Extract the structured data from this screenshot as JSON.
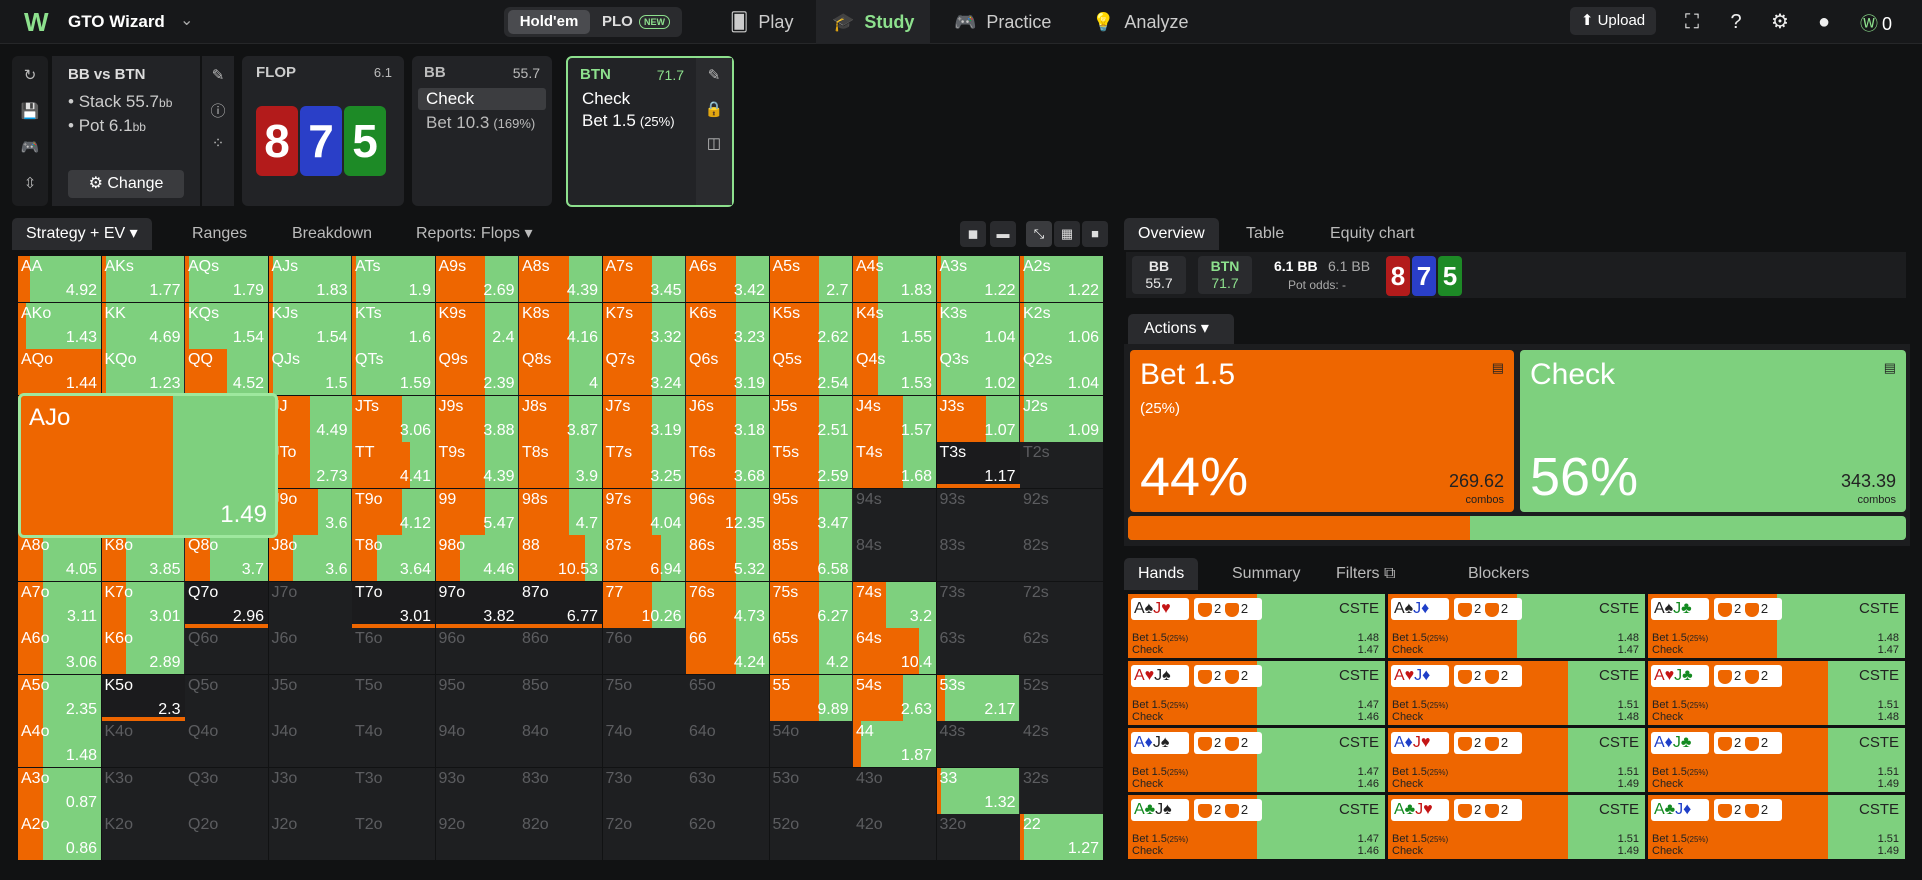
{
  "topbar": {
    "app_name": "GTO Wizard",
    "game_holdem": "Hold'em",
    "game_plo": "PLO",
    "new_badge": "NEW",
    "nav": [
      "Play",
      "Study",
      "Practice",
      "Analyze"
    ],
    "upload": "Upload",
    "coins": "0"
  },
  "spot": {
    "title": "BB vs BTN",
    "stack_label": "Stack 55.7",
    "pot_label": "Pot 6.1",
    "unit": "bb",
    "change": "Change"
  },
  "flop": {
    "label": "FLOP",
    "pot": "6.1",
    "cards": [
      "8",
      "7",
      "5"
    ],
    "card_colors": [
      "#b31b1b",
      "#2a3fc8",
      "#1d8a26"
    ]
  },
  "bb_node": {
    "name": "BB",
    "stack": "55.7",
    "opt1": "Check",
    "opt2": "Bet 10.3",
    "opt2_pct": "(169%)"
  },
  "btn_node": {
    "name": "BTN",
    "stack": "71.7",
    "opt1": "Check",
    "opt2": "Bet 1.5",
    "opt2_pct": "(25%)"
  },
  "left_tabs": [
    "Strategy + EV",
    "Ranges",
    "Breakdown",
    "Reports: Flops"
  ],
  "grid": {
    "ranks": [
      "A",
      "K",
      "Q",
      "J",
      "T",
      "9",
      "8",
      "7",
      "6",
      "5",
      "4",
      "3",
      "2"
    ],
    "big_cell": {
      "name": "AJo",
      "ev": "1.49",
      "bet_frac": 0.6
    },
    "ev": [
      [
        "4.92",
        "1.77",
        "1.79",
        "1.83",
        "1.9",
        "2.69",
        "4.39",
        "3.45",
        "3.42",
        "2.7",
        "1.83",
        "1.22",
        "1.22"
      ],
      [
        "1.43",
        "4.69",
        "1.54",
        "1.54",
        "1.6",
        "2.4",
        "4.16",
        "3.32",
        "3.23",
        "2.62",
        "1.55",
        "1.04",
        "1.06"
      ],
      [
        "1.44",
        "1.23",
        "4.52",
        "1.5",
        "1.59",
        "2.39",
        "4",
        "3.24",
        "3.19",
        "2.54",
        "1.53",
        "1.02",
        "1.04"
      ],
      [
        "1.49",
        "",
        "",
        "4.49",
        "3.06",
        "3.88",
        "3.87",
        "3.19",
        "3.18",
        "2.51",
        "1.57",
        "1.07",
        "1.09"
      ],
      [
        "",
        "",
        "",
        "2.73",
        "4.41",
        "4.39",
        "3.9",
        "3.25",
        "3.68",
        "2.59",
        "1.68",
        "1.17",
        ""
      ],
      [
        "",
        "",
        "",
        "3.6",
        "4.12",
        "5.47",
        "4.7",
        "4.04",
        "12.35",
        "3.47",
        "",
        "",
        ""
      ],
      [
        "4.05",
        "3.85",
        "3.7",
        "3.6",
        "3.64",
        "4.46",
        "10.53",
        "6.94",
        "5.32",
        "6.58",
        "",
        "",
        ""
      ],
      [
        "3.11",
        "3.01",
        "2.96",
        "",
        "3.01",
        "3.82",
        "6.77",
        "10.26",
        "4.73",
        "6.27",
        "3.2",
        "",
        ""
      ],
      [
        "3.06",
        "2.89",
        "",
        "",
        "",
        "",
        "",
        "",
        "4.24",
        "4.2",
        "10.4",
        "",
        ""
      ],
      [
        "2.35",
        "2.3",
        "",
        "",
        "",
        "",
        "",
        "",
        "",
        "9.89",
        "2.63",
        "2.17",
        ""
      ],
      [
        "1.48",
        "",
        "",
        "",
        "",
        "",
        "",
        "",
        "",
        "",
        "1.87",
        "",
        ""
      ],
      [
        "0.87",
        "",
        "",
        "",
        "",
        "",
        "",
        "",
        "",
        "",
        "",
        "1.32",
        ""
      ],
      [
        "0.86",
        "",
        "",
        "",
        "",
        "",
        "",
        "",
        "",
        "",
        "",
        "",
        "1.27"
      ]
    ],
    "bet": [
      [
        0.15,
        0.05,
        0.05,
        0.05,
        0.05,
        0.6,
        0.6,
        0.6,
        0.6,
        0.6,
        0.3,
        0.05,
        0.05
      ],
      [
        0.1,
        0.05,
        0.05,
        0.05,
        0.05,
        0.6,
        0.6,
        0.6,
        0.6,
        0.6,
        0.3,
        0.05,
        0.05
      ],
      [
        1.0,
        0.05,
        0.5,
        0.05,
        0.05,
        0.6,
        0.6,
        0.6,
        0.6,
        0.6,
        0.3,
        0.05,
        0.05
      ],
      [
        0.6,
        0.6,
        0.6,
        0.5,
        0.6,
        0.6,
        0.6,
        0.6,
        0.6,
        0.6,
        0.6,
        0.6,
        0.05
      ],
      [
        0.6,
        0.6,
        0.6,
        0.5,
        0.7,
        0.6,
        0.6,
        0.6,
        0.6,
        0.6,
        0.6,
        0,
        0
      ],
      [
        0.6,
        0.6,
        0.6,
        0.6,
        0.6,
        0.6,
        0.6,
        0.6,
        0.6,
        0.6,
        0,
        0,
        0
      ],
      [
        0.3,
        0.3,
        0.3,
        0.3,
        0.3,
        0.3,
        0.8,
        0.7,
        0.6,
        0.6,
        0,
        0,
        0
      ],
      [
        0.3,
        0.3,
        0,
        0,
        0,
        0,
        0,
        0.6,
        0.6,
        0.6,
        0.4,
        0,
        0
      ],
      [
        0.3,
        0.3,
        0,
        0,
        0,
        0,
        0,
        0,
        0.6,
        0.6,
        0.8,
        0,
        0
      ],
      [
        0.3,
        0,
        0,
        0,
        0,
        0,
        0,
        0,
        0,
        0.6,
        0.6,
        0.1,
        0
      ],
      [
        0.3,
        0,
        0,
        0,
        0,
        0,
        0,
        0,
        0,
        0,
        0.1,
        0,
        0
      ],
      [
        0.3,
        0,
        0,
        0,
        0,
        0,
        0,
        0,
        0,
        0,
        0,
        0.05,
        0
      ],
      [
        0.3,
        0,
        0,
        0,
        0,
        0,
        0,
        0,
        0,
        0,
        0,
        0,
        0.05
      ]
    ],
    "played": [
      [
        1,
        1,
        1,
        1,
        1,
        1,
        1,
        1,
        1,
        1,
        1,
        1,
        1
      ],
      [
        1,
        1,
        1,
        1,
        1,
        1,
        1,
        1,
        1,
        1,
        1,
        1,
        1
      ],
      [
        1,
        1,
        1,
        1,
        1,
        1,
        1,
        1,
        1,
        1,
        1,
        1,
        1
      ],
      [
        1,
        1,
        1,
        1,
        1,
        1,
        1,
        1,
        1,
        1,
        1,
        1,
        1
      ],
      [
        1,
        1,
        1,
        1,
        1,
        1,
        1,
        1,
        1,
        1,
        1,
        2,
        0
      ],
      [
        1,
        1,
        1,
        1,
        1,
        1,
        1,
        1,
        1,
        1,
        0,
        0,
        0
      ],
      [
        1,
        1,
        1,
        1,
        1,
        1,
        1,
        1,
        1,
        1,
        0,
        0,
        0
      ],
      [
        1,
        1,
        2,
        0,
        2,
        2,
        2,
        1,
        1,
        1,
        1,
        0,
        0
      ],
      [
        1,
        1,
        0,
        0,
        0,
        0,
        0,
        0,
        1,
        1,
        1,
        0,
        0
      ],
      [
        1,
        2,
        0,
        0,
        0,
        0,
        0,
        0,
        0,
        1,
        1,
        1,
        0
      ],
      [
        1,
        0,
        0,
        0,
        0,
        0,
        0,
        0,
        0,
        0,
        1,
        0,
        0
      ],
      [
        1,
        0,
        0,
        0,
        0,
        0,
        0,
        0,
        0,
        0,
        0,
        1,
        0
      ],
      [
        1,
        0,
        0,
        0,
        0,
        0,
        0,
        0,
        0,
        0,
        0,
        0,
        1
      ]
    ]
  },
  "right_tabs": [
    "Overview",
    "Table",
    "Equity chart"
  ],
  "summary": {
    "bb": "BB",
    "bb_stack": "55.7",
    "btn": "BTN",
    "btn_stack": "71.7",
    "pot": "6.1 BB",
    "pot2": "6.1 BB",
    "odds": "Pot odds:  -",
    "cards": [
      "8",
      "7",
      "5"
    ]
  },
  "actions_label": "Actions",
  "actions": [
    {
      "name": "Bet 1.5",
      "sub": "(25%)",
      "pct": "44%",
      "combos": "269.62",
      "combos_label": "combos",
      "color": "#ee6600"
    },
    {
      "name": "Check",
      "sub": "",
      "pct": "56%",
      "combos": "343.39",
      "combos_label": "combos",
      "color": "#7ed07e"
    }
  ],
  "freq": {
    "bet": 0.44
  },
  "hand_tabs": [
    "Hands",
    "Summary",
    "Filters",
    "Blockers"
  ],
  "hands": [
    {
      "c1": "A",
      "s1": "♠",
      "k1": "g0",
      "c2": "J",
      "s2": "♥",
      "k2": "r",
      "tag": "CSTE",
      "v1": "1.48",
      "v2": "1.47",
      "bet": 0.5
    },
    {
      "c1": "A",
      "s1": "♠",
      "k1": "g0",
      "c2": "J",
      "s2": "♦",
      "k2": "b",
      "tag": "CSTE",
      "v1": "1.48",
      "v2": "1.47",
      "bet": 0.5
    },
    {
      "c1": "A",
      "s1": "♠",
      "k1": "g0",
      "c2": "J",
      "s2": "♣",
      "k2": "g",
      "tag": "CSTE",
      "v1": "1.48",
      "v2": "1.47",
      "bet": 0.5
    },
    {
      "c1": "A",
      "s1": "♥",
      "k1": "r",
      "c2": "J",
      "s2": "♠",
      "k2": "g0",
      "tag": "CSTE",
      "v1": "1.47",
      "v2": "1.46",
      "bet": 0.5
    },
    {
      "c1": "A",
      "s1": "♥",
      "k1": "r",
      "c2": "J",
      "s2": "♦",
      "k2": "b",
      "tag": "CSTE",
      "v1": "1.51",
      "v2": "1.48",
      "bet": 0.7
    },
    {
      "c1": "A",
      "s1": "♥",
      "k1": "r",
      "c2": "J",
      "s2": "♣",
      "k2": "g",
      "tag": "CSTE",
      "v1": "1.51",
      "v2": "1.48",
      "bet": 0.7
    },
    {
      "c1": "A",
      "s1": "♦",
      "k1": "b",
      "c2": "J",
      "s2": "♠",
      "k2": "g0",
      "tag": "CSTE",
      "v1": "1.47",
      "v2": "1.46",
      "bet": 0.5
    },
    {
      "c1": "A",
      "s1": "♦",
      "k1": "b",
      "c2": "J",
      "s2": "♥",
      "k2": "r",
      "tag": "CSTE",
      "v1": "1.51",
      "v2": "1.49",
      "bet": 0.7
    },
    {
      "c1": "A",
      "s1": "♦",
      "k1": "b",
      "c2": "J",
      "s2": "♣",
      "k2": "g",
      "tag": "CSTE",
      "v1": "1.51",
      "v2": "1.49",
      "bet": 0.7
    },
    {
      "c1": "A",
      "s1": "♣",
      "k1": "g",
      "c2": "J",
      "s2": "♠",
      "k2": "g0",
      "tag": "CSTE",
      "v1": "1.47",
      "v2": "1.46",
      "bet": 0.5
    },
    {
      "c1": "A",
      "s1": "♣",
      "k1": "g",
      "c2": "J",
      "s2": "♥",
      "k2": "r",
      "tag": "CSTE",
      "v1": "1.51",
      "v2": "1.49",
      "bet": 0.7
    },
    {
      "c1": "A",
      "s1": "♣",
      "k1": "g",
      "c2": "J",
      "s2": "♦",
      "k2": "b",
      "tag": "CSTE",
      "v1": "1.51",
      "v2": "1.49",
      "bet": 0.7
    }
  ],
  "hand_line1": "Bet 1.5",
  "hand_line1_pct": "(25%)",
  "hand_line2": "Check",
  "shield_vals": [
    "2",
    "2"
  ]
}
